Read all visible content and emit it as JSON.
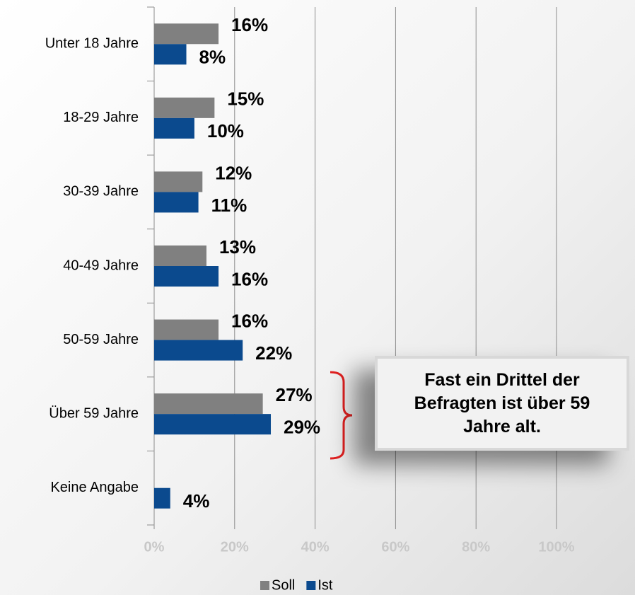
{
  "chart_data": {
    "type": "bar",
    "orientation": "horizontal",
    "categories": [
      "Unter 18 Jahre",
      "18-29 Jahre",
      "30-39 Jahre",
      "40-49 Jahre",
      "50-59 Jahre",
      "Über 59 Jahre",
      "Keine Angabe"
    ],
    "series": [
      {
        "name": "Soll",
        "color": "#808080",
        "values": [
          16,
          15,
          12,
          13,
          16,
          27,
          null
        ],
        "value_labels": [
          "16%",
          "15%",
          "12%",
          "13%",
          "16%",
          "27%",
          null
        ]
      },
      {
        "name": "Ist",
        "color": "#0b4a8e",
        "values": [
          8,
          10,
          11,
          16,
          22,
          29,
          4
        ],
        "value_labels": [
          "8%",
          "10%",
          "11%",
          "16%",
          "22%",
          "29%",
          "4%"
        ]
      }
    ],
    "xlim": [
      0,
      100
    ],
    "xticks": [
      {
        "value": 0,
        "label": "0%"
      },
      {
        "value": 20,
        "label": "20%"
      },
      {
        "value": 40,
        "label": "40%"
      },
      {
        "value": 60,
        "label": "60%"
      },
      {
        "value": 80,
        "label": "80%"
      },
      {
        "value": 100,
        "label": "100%"
      }
    ],
    "grid": true,
    "legend": "bottom",
    "annotation": "Fast ein Drittel der Befragten ist über 59 Jahre alt."
  }
}
